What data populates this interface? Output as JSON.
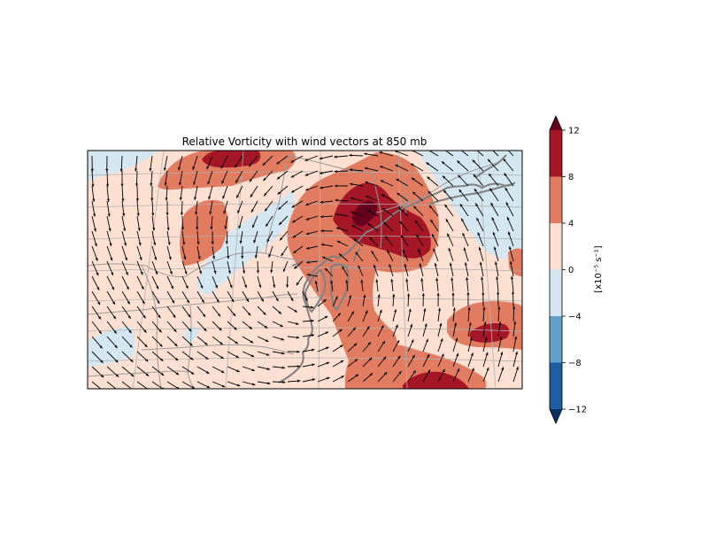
{
  "figure": {
    "title": "Relative Vorticity with wind vectors at 850 mb"
  },
  "colorbar": {
    "label": "[x10⁻⁵ s⁻¹]",
    "levels": [
      -12,
      -8,
      -4,
      0,
      4,
      8,
      12
    ],
    "tick_labels": [
      "−12",
      "−8",
      "−4",
      "0",
      "4",
      "8",
      "12"
    ],
    "colors": [
      "#1d5da3",
      "#5fa1ca",
      "#d4e6f0",
      "#fde0d2",
      "#e27c61",
      "#a51626"
    ],
    "extend_low_color": "#073064",
    "extend_high_color": "#67001f"
  },
  "map_colors": {
    "background": "#fde0d2",
    "neg_weak": "#d4e6f0",
    "pos_moderate": "#e27c61",
    "pos_strong": "#a51626",
    "pos_extreme": "#67001f",
    "coastline": "#808080",
    "grid": "#b0b0b0",
    "vector": "#000000"
  }
}
